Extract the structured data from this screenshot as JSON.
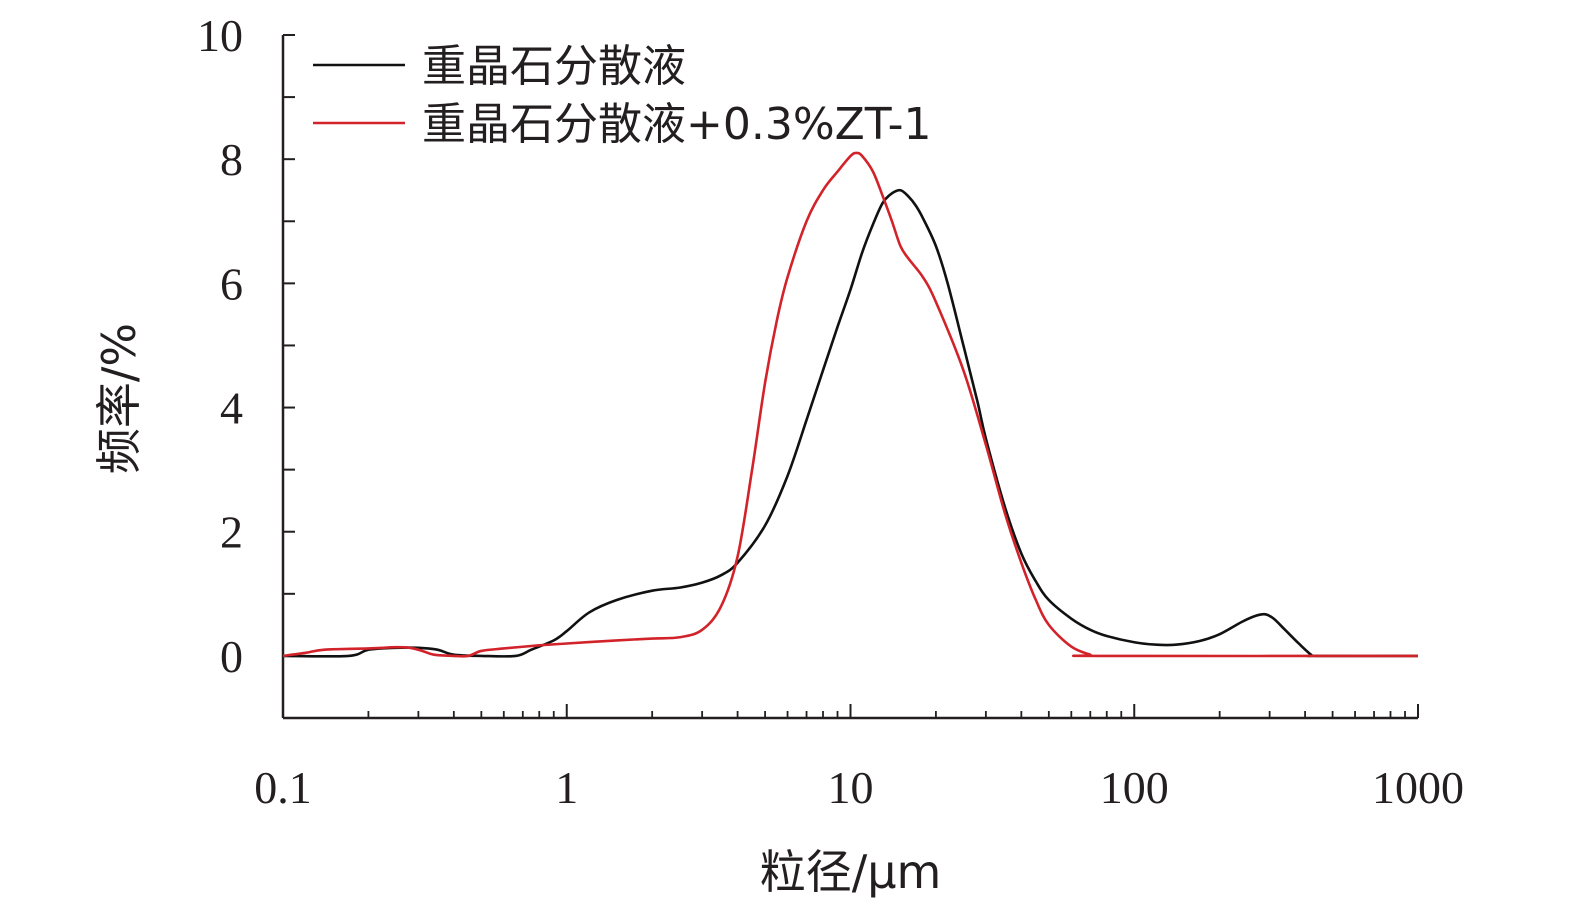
{
  "chart_data": {
    "type": "line",
    "title": "",
    "xlabel": "粒径/μm",
    "ylabel": "频率/%",
    "x_scale": "log",
    "xlim": [
      0.1,
      1000
    ],
    "ylim": [
      -1,
      10
    ],
    "x_ticks": [
      {
        "value": 0.1,
        "label": "0.1"
      },
      {
        "value": 1,
        "label": "1"
      },
      {
        "value": 10,
        "label": "10"
      },
      {
        "value": 100,
        "label": "100"
      },
      {
        "value": 1000,
        "label": "1000"
      }
    ],
    "y_ticks": [
      {
        "value": 0,
        "label": "0"
      },
      {
        "value": 2,
        "label": "2"
      },
      {
        "value": 4,
        "label": "4"
      },
      {
        "value": 6,
        "label": "6"
      },
      {
        "value": 8,
        "label": "8"
      },
      {
        "value": 10,
        "label": "10"
      }
    ],
    "grid": false,
    "legend_position": "top-left",
    "series": [
      {
        "name": "重晶石分散液",
        "color": "#111111",
        "points": [
          [
            0.1,
            0.0
          ],
          [
            0.17,
            0.0
          ],
          [
            0.2,
            0.1
          ],
          [
            0.25,
            0.13
          ],
          [
            0.3,
            0.13
          ],
          [
            0.35,
            0.1
          ],
          [
            0.4,
            0.02
          ],
          [
            0.5,
            0.0
          ],
          [
            0.66,
            0.0
          ],
          [
            0.75,
            0.1
          ],
          [
            0.9,
            0.25
          ],
          [
            1.0,
            0.4
          ],
          [
            1.2,
            0.7
          ],
          [
            1.5,
            0.9
          ],
          [
            2.0,
            1.05
          ],
          [
            2.5,
            1.1
          ],
          [
            3.0,
            1.18
          ],
          [
            3.5,
            1.3
          ],
          [
            4.0,
            1.5
          ],
          [
            5.0,
            2.1
          ],
          [
            6.0,
            2.9
          ],
          [
            7.0,
            3.8
          ],
          [
            8.0,
            4.6
          ],
          [
            9.0,
            5.3
          ],
          [
            10.0,
            5.9
          ],
          [
            11.0,
            6.5
          ],
          [
            12.0,
            6.95
          ],
          [
            13.0,
            7.3
          ],
          [
            14.0,
            7.45
          ],
          [
            15.0,
            7.5
          ],
          [
            16.0,
            7.4
          ],
          [
            17.0,
            7.25
          ],
          [
            18.0,
            7.05
          ],
          [
            20.0,
            6.6
          ],
          [
            22.0,
            6.0
          ],
          [
            25.0,
            5.0
          ],
          [
            28.0,
            4.1
          ],
          [
            30.0,
            3.5
          ],
          [
            35.0,
            2.4
          ],
          [
            40.0,
            1.65
          ],
          [
            45.0,
            1.2
          ],
          [
            50.0,
            0.9
          ],
          [
            60.0,
            0.6
          ],
          [
            70.0,
            0.42
          ],
          [
            80.0,
            0.32
          ],
          [
            100.0,
            0.22
          ],
          [
            120.0,
            0.18
          ],
          [
            140.0,
            0.18
          ],
          [
            170.0,
            0.24
          ],
          [
            200.0,
            0.35
          ],
          [
            240.0,
            0.55
          ],
          [
            270.0,
            0.65
          ],
          [
            290.0,
            0.67
          ],
          [
            310.0,
            0.6
          ],
          [
            340.0,
            0.42
          ],
          [
            380.0,
            0.2
          ],
          [
            420.0,
            0.02
          ],
          [
            440.0,
            0.0
          ],
          [
            1000.0,
            0.0
          ]
        ]
      },
      {
        "name": "重晶石分散液+0.3%ZT-1",
        "color": "#d2232a",
        "points": [
          [
            0.1,
            0.0
          ],
          [
            0.12,
            0.05
          ],
          [
            0.14,
            0.1
          ],
          [
            0.2,
            0.12
          ],
          [
            0.25,
            0.14
          ],
          [
            0.28,
            0.13
          ],
          [
            0.31,
            0.08
          ],
          [
            0.34,
            0.02
          ],
          [
            0.4,
            0.0
          ],
          [
            0.45,
            0.0
          ],
          [
            0.5,
            0.08
          ],
          [
            0.6,
            0.12
          ],
          [
            0.8,
            0.17
          ],
          [
            1.0,
            0.2
          ],
          [
            1.5,
            0.25
          ],
          [
            2.0,
            0.28
          ],
          [
            2.5,
            0.3
          ],
          [
            3.0,
            0.42
          ],
          [
            3.5,
            0.8
          ],
          [
            4.0,
            1.6
          ],
          [
            4.5,
            3.0
          ],
          [
            5.0,
            4.4
          ],
          [
            5.5,
            5.4
          ],
          [
            6.0,
            6.1
          ],
          [
            7.0,
            7.0
          ],
          [
            8.0,
            7.5
          ],
          [
            9.0,
            7.8
          ],
          [
            10.0,
            8.05
          ],
          [
            10.5,
            8.1
          ],
          [
            11.0,
            8.05
          ],
          [
            12.0,
            7.8
          ],
          [
            13.0,
            7.4
          ],
          [
            14.0,
            7.0
          ],
          [
            15.0,
            6.6
          ],
          [
            16.0,
            6.4
          ],
          [
            18.0,
            6.1
          ],
          [
            20.0,
            5.7
          ],
          [
            25.0,
            4.6
          ],
          [
            30.0,
            3.4
          ],
          [
            35.0,
            2.3
          ],
          [
            40.0,
            1.5
          ],
          [
            45.0,
            0.9
          ],
          [
            50.0,
            0.5
          ],
          [
            60.0,
            0.15
          ],
          [
            70.0,
            0.02
          ],
          [
            75.0,
            0.0
          ],
          [
            1000.0,
            0.0
          ]
        ]
      }
    ]
  }
}
